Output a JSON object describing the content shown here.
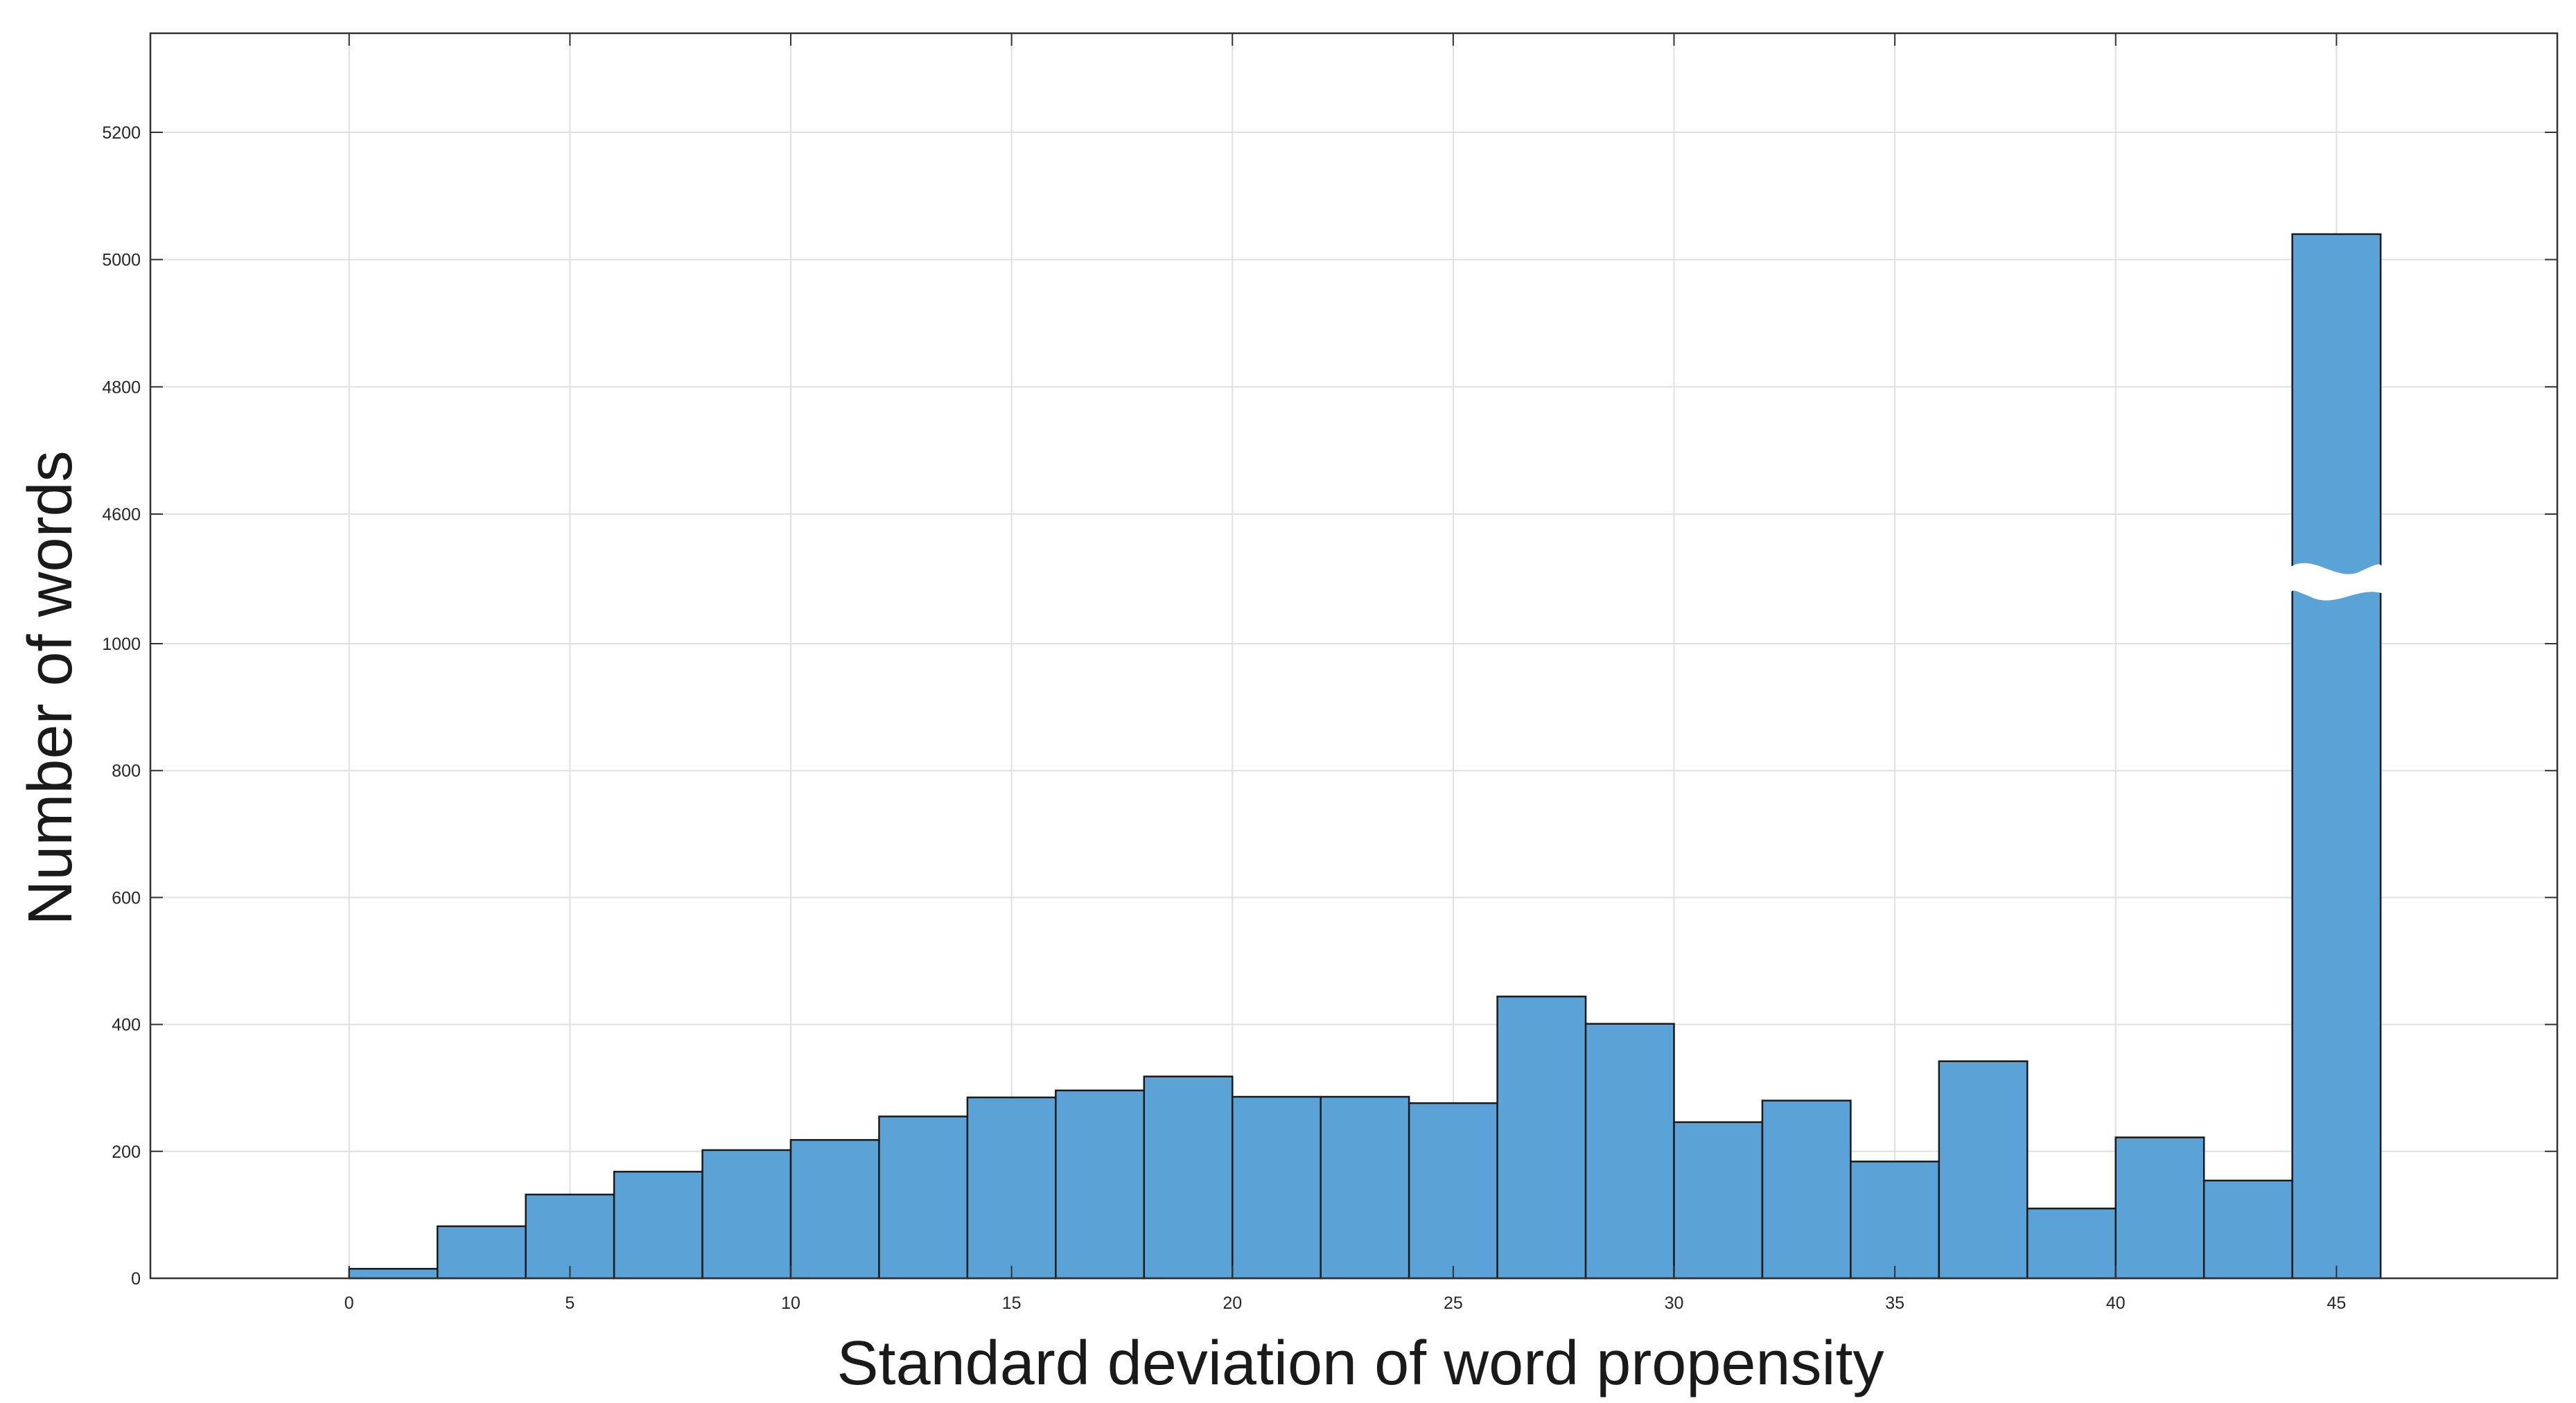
{
  "chart_data": {
    "type": "bar",
    "xlabel": "Standard deviation of word propensity",
    "ylabel": "Number of words",
    "bin_edges": [
      0,
      2,
      4,
      6,
      8,
      10,
      12,
      14,
      16,
      18,
      20,
      22,
      24,
      26,
      28,
      30,
      32,
      34,
      36,
      38,
      40,
      42,
      44,
      46
    ],
    "values": [
      15,
      82,
      132,
      168,
      202,
      218,
      255,
      285,
      296,
      318,
      286,
      286,
      276,
      444,
      401,
      246,
      280,
      184,
      342,
      110,
      222,
      154,
      5040
    ],
    "xlim": [
      -4.5,
      50
    ],
    "x_ticks": [
      "0",
      "5",
      "10",
      "15",
      "20",
      "25",
      "30",
      "35",
      "40",
      "45"
    ],
    "y_ticks": [
      "0",
      "200",
      "400",
      "600",
      "800",
      "1000",
      "4600",
      "4800",
      "5000",
      "5200"
    ],
    "y_axis_break": {
      "lower_max": 1000,
      "upper_min": 4600,
      "upper_max": 5200
    },
    "grid": true,
    "colors": {
      "bar_fill": "#5ba3d6",
      "bar_edge": "#1a1a1a",
      "grid": "#e0e0e0",
      "axis": "#333333"
    }
  }
}
